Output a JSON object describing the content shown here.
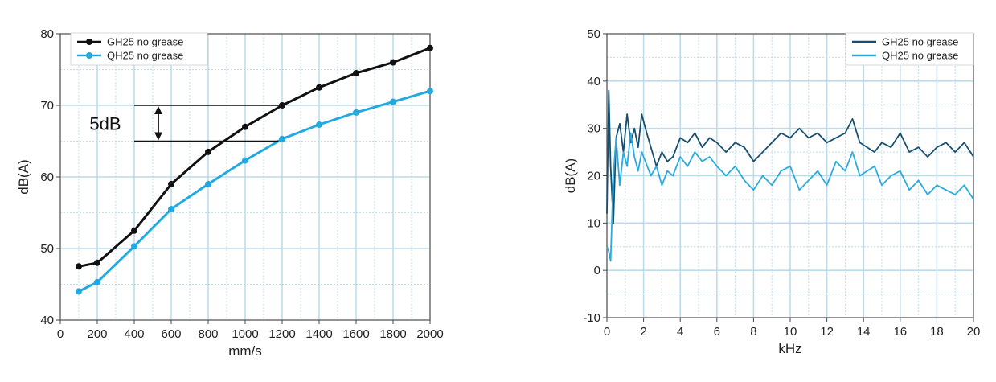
{
  "chart_data": [
    {
      "type": "line",
      "title": "",
      "xlabel": "mm/s",
      "ylabel": "dB(A)",
      "xlim": [
        0,
        2000
      ],
      "ylim": [
        40,
        80
      ],
      "xticks": [
        "0",
        "200",
        "400",
        "600",
        "800",
        "1000",
        "1200",
        "1400",
        "1600",
        "1800",
        "2000"
      ],
      "xtick_values": [
        0,
        200,
        400,
        600,
        800,
        1000,
        1200,
        1400,
        1600,
        1800,
        2000
      ],
      "yticks": [
        "40",
        "50",
        "60",
        "70",
        "80"
      ],
      "ytick_values": [
        40,
        50,
        60,
        70,
        80
      ],
      "grid": true,
      "legend_position": "top-left",
      "series": [
        {
          "name": "GH25 no grease",
          "color": "#111111",
          "x": [
            100,
            200,
            400,
            600,
            800,
            1000,
            1200,
            1400,
            1600,
            1800,
            2000
          ],
          "y": [
            47.5,
            48,
            52.5,
            59,
            63.5,
            67,
            70,
            72.5,
            74.5,
            76,
            78
          ]
        },
        {
          "name": "QH25 no grease",
          "color": "#22a9e0",
          "x": [
            100,
            200,
            400,
            600,
            800,
            1000,
            1200,
            1400,
            1600,
            1800,
            2000
          ],
          "y": [
            44,
            45.3,
            50.3,
            55.5,
            59,
            62.3,
            65.3,
            67.3,
            69,
            70.5,
            72
          ]
        }
      ],
      "annotations": [
        {
          "text": "5dB",
          "x_start": 400,
          "y_top": 70,
          "y_bottom": 65
        }
      ]
    },
    {
      "type": "line",
      "title": "",
      "xlabel": "kHz",
      "ylabel": "dB(A)",
      "xlim": [
        0,
        20
      ],
      "ylim": [
        -10,
        50
      ],
      "xticks": [
        "0",
        "2",
        "4",
        "6",
        "8",
        "10",
        "12",
        "14",
        "16",
        "18",
        "20"
      ],
      "xtick_values": [
        0,
        2,
        4,
        6,
        8,
        10,
        12,
        14,
        16,
        18,
        20
      ],
      "yticks": [
        "-10",
        "0",
        "10",
        "20",
        "30",
        "40",
        "50"
      ],
      "ytick_values": [
        -10,
        0,
        10,
        20,
        30,
        40,
        50
      ],
      "grid": true,
      "legend_position": "top-right",
      "series": [
        {
          "name": "GH25 no grease",
          "color": "#17506e",
          "x": [
            0,
            0.1,
            0.2,
            0.35,
            0.5,
            0.7,
            0.9,
            1.1,
            1.3,
            1.5,
            1.7,
            1.9,
            2.1,
            2.4,
            2.7,
            3.0,
            3.3,
            3.6,
            4.0,
            4.4,
            4.8,
            5.2,
            5.6,
            6.0,
            6.5,
            7.0,
            7.5,
            8.0,
            8.5,
            9.0,
            9.5,
            10.0,
            10.5,
            11.0,
            11.5,
            12.0,
            12.5,
            13.0,
            13.4,
            13.8,
            14.2,
            14.6,
            15.0,
            15.5,
            16.0,
            16.5,
            17.0,
            17.5,
            18.0,
            18.5,
            19.0,
            19.5,
            20.0
          ],
          "y": [
            12,
            38,
            22,
            10,
            28,
            31,
            25,
            33,
            27,
            30,
            26,
            33,
            30,
            26,
            22,
            25,
            23,
            24,
            28,
            27,
            29,
            26,
            28,
            27,
            25,
            27,
            26,
            23,
            25,
            27,
            29,
            28,
            30,
            28,
            29,
            27,
            28,
            29,
            32,
            27,
            26,
            25,
            27,
            26,
            29,
            25,
            26,
            24,
            26,
            27,
            25,
            27,
            24
          ]
        },
        {
          "name": "QH25 no grease",
          "color": "#2aaadd",
          "x": [
            0,
            0.1,
            0.2,
            0.35,
            0.5,
            0.7,
            0.9,
            1.1,
            1.3,
            1.5,
            1.7,
            1.9,
            2.1,
            2.4,
            2.7,
            3.0,
            3.3,
            3.6,
            4.0,
            4.4,
            4.8,
            5.2,
            5.6,
            6.0,
            6.5,
            7.0,
            7.5,
            8.0,
            8.5,
            9.0,
            9.5,
            10.0,
            10.5,
            11.0,
            11.5,
            12.0,
            12.5,
            13.0,
            13.4,
            13.8,
            14.2,
            14.6,
            15.0,
            15.5,
            16.0,
            16.5,
            17.0,
            17.5,
            18.0,
            18.5,
            19.0,
            19.5,
            20.0
          ],
          "y": [
            5,
            4,
            2,
            20,
            28,
            18,
            25,
            22,
            29,
            24,
            21,
            25,
            23,
            20,
            22,
            18,
            21,
            20,
            24,
            22,
            25,
            23,
            24,
            22,
            20,
            22,
            19,
            17,
            20,
            18,
            21,
            22,
            17,
            19,
            21,
            18,
            23,
            21,
            25,
            20,
            21,
            22,
            18,
            20,
            21,
            17,
            19,
            16,
            18,
            17,
            16,
            18,
            15
          ]
        }
      ]
    }
  ]
}
